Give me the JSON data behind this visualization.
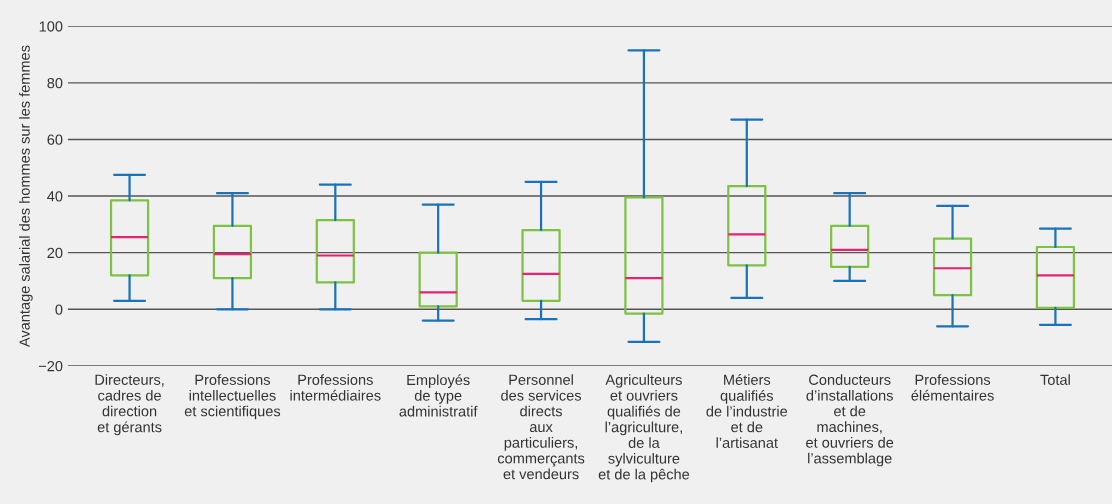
{
  "chart_data": {
    "type": "box",
    "ylabel": "Avantage salarial des hommes sur les femmes",
    "categories": [
      "Directeurs,\ncadres de\ndirection\net gérants",
      "Professions\nintellectuelles\net scientifiques",
      "Professions\nintermédiaires",
      "Employés\nde type\nadministratif",
      "Personnel\ndes services\ndirects\naux\nparticuliers,\ncommerçants\net vendeurs",
      "Agriculteurs\net ouvriers\nqualifiés de\nl’agriculture,\nde la\nsylviculture\net de la pêche",
      "Métiers\nqualifiés\nde l’industrie\net de\nl’artisanat",
      "Conducteurs\nd’installations\net de\nmachines,\net ouvriers de\nl’assemblage",
      "Professions\nélémentaires",
      "Total"
    ],
    "boxes": [
      {
        "low": 3,
        "q1": 12,
        "median": 25.5,
        "q3": 38.5,
        "high": 47.5
      },
      {
        "low": 0,
        "q1": 11,
        "median": 19.5,
        "q3": 29.5,
        "high": 41
      },
      {
        "low": 0,
        "q1": 9.5,
        "median": 19,
        "q3": 31.5,
        "high": 44
      },
      {
        "low": -4,
        "q1": 1,
        "median": 6,
        "q3": 20,
        "high": 37
      },
      {
        "low": -3.5,
        "q1": 3,
        "median": 12.5,
        "q3": 28,
        "high": 45
      },
      {
        "low": -11.5,
        "q1": -1.5,
        "median": 11,
        "q3": 39.5,
        "high": 91.5
      },
      {
        "low": 4,
        "q1": 15.5,
        "median": 26.5,
        "q3": 43.5,
        "high": 67
      },
      {
        "low": 10,
        "q1": 15,
        "median": 21,
        "q3": 29.5,
        "high": 41
      },
      {
        "low": -6,
        "q1": 5,
        "median": 14.5,
        "q3": 25,
        "high": 36.5
      },
      {
        "low": -5.5,
        "q1": 0.5,
        "median": 12,
        "q3": 22,
        "high": 28.5
      }
    ],
    "color": "#7dc242",
    "ylim": [
      -20,
      100
    ],
    "yticks": [
      {
        "value": -20,
        "label": "−20"
      },
      0,
      20,
      40,
      60,
      80,
      100
    ],
    "grid": "y",
    "legend": false
  }
}
